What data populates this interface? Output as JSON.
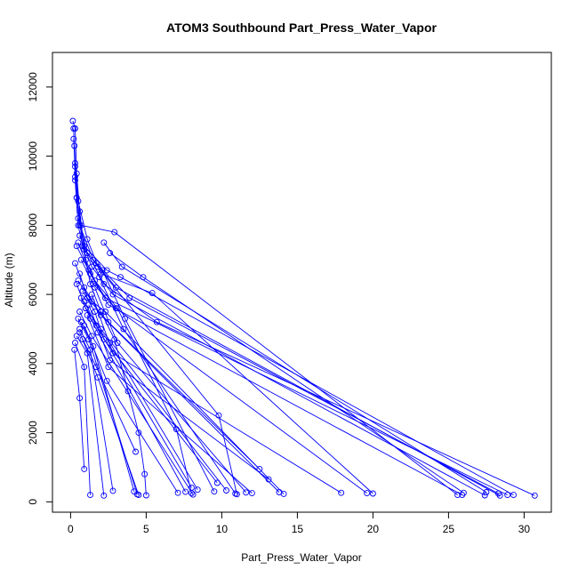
{
  "chart_data": {
    "type": "line",
    "title": "ATOM3 Southbound Part_Press_Water_Vapor",
    "xlabel": "Part_Press_Water_Vapor",
    "ylabel": "Altitude (m)",
    "xlim": [
      -1.2,
      31.8
    ],
    "ylim": [
      -300,
      13000
    ],
    "x_ticks": [
      0,
      5,
      10,
      15,
      20,
      25,
      30
    ],
    "y_ticks": [
      0,
      2000,
      4000,
      6000,
      8000,
      10000,
      12000
    ],
    "grid": false,
    "legend": "none",
    "series_color": "#0000ff",
    "profiles": [
      [
        [
          0.15,
          11020
        ],
        [
          0.3,
          10800
        ],
        [
          0.4,
          9500
        ],
        [
          0.6,
          8400
        ],
        [
          0.9,
          7300
        ],
        [
          1.3,
          6300
        ],
        [
          2.0,
          5500
        ],
        [
          2.9,
          4700
        ],
        [
          3.8,
          3200
        ],
        [
          4.5,
          2000
        ],
        [
          4.9,
          800
        ],
        [
          5.0,
          190
        ]
      ],
      [
        [
          0.2,
          10800
        ],
        [
          0.3,
          9300
        ],
        [
          0.5,
          8000
        ],
        [
          1.0,
          7000
        ],
        [
          1.6,
          6400
        ],
        [
          3.1,
          5600
        ],
        [
          7.0,
          2100
        ],
        [
          8.0,
          250
        ]
      ],
      [
        [
          0.25,
          10300
        ],
        [
          0.4,
          8800
        ],
        [
          0.8,
          7400
        ],
        [
          1.8,
          6800
        ],
        [
          9.8,
          2500
        ],
        [
          11.0,
          220
        ]
      ],
      [
        [
          0.3,
          9800
        ],
        [
          0.5,
          8700
        ],
        [
          1.1,
          7600
        ],
        [
          2.0,
          6600
        ],
        [
          5.4,
          6040
        ],
        [
          20.0,
          240
        ]
      ],
      [
        [
          0.2,
          10500
        ],
        [
          0.3,
          9700
        ],
        [
          0.7,
          8000
        ],
        [
          2.9,
          7800
        ],
        [
          25.6,
          200
        ]
      ],
      [
        [
          0.3,
          9400
        ],
        [
          0.6,
          8000
        ],
        [
          1.5,
          7000
        ],
        [
          3.0,
          6200
        ],
        [
          28.4,
          180
        ]
      ],
      [
        [
          0.4,
          8800
        ],
        [
          0.9,
          7400
        ],
        [
          2.4,
          6700
        ],
        [
          3.3,
          6500
        ],
        [
          29.3,
          200
        ]
      ],
      [
        [
          0.5,
          8200
        ],
        [
          1.1,
          7200
        ],
        [
          2.2,
          6300
        ],
        [
          5.7,
          5200
        ],
        [
          30.7,
          180
        ]
      ],
      [
        [
          0.6,
          7700
        ],
        [
          1.4,
          6800
        ],
        [
          2.8,
          6000
        ],
        [
          27.4,
          190
        ]
      ],
      [
        [
          0.4,
          7400
        ],
        [
          1.3,
          6600
        ],
        [
          2.5,
          5700
        ],
        [
          25.9,
          200
        ]
      ],
      [
        [
          0.5,
          7500
        ],
        [
          1.2,
          6700
        ],
        [
          2.3,
          5900
        ],
        [
          28.9,
          200
        ]
      ],
      [
        [
          0.7,
          7000
        ],
        [
          1.5,
          6300
        ],
        [
          3.0,
          5600
        ],
        [
          19.6,
          250
        ]
      ],
      [
        [
          0.3,
          6900
        ],
        [
          0.9,
          6200
        ],
        [
          2.0,
          5400
        ],
        [
          13.8,
          280
        ]
      ],
      [
        [
          0.6,
          6600
        ],
        [
          1.1,
          5900
        ],
        [
          2.5,
          5200
        ],
        [
          12.5,
          950
        ]
      ],
      [
        [
          0.5,
          6400
        ],
        [
          1.4,
          5800
        ],
        [
          2.3,
          5500
        ],
        [
          14.1,
          230
        ]
      ],
      [
        [
          0.4,
          6300
        ],
        [
          1.0,
          5600
        ],
        [
          2.0,
          5000
        ],
        [
          10.3,
          330
        ]
      ],
      [
        [
          0.8,
          6100
        ],
        [
          1.6,
          5500
        ],
        [
          2.2,
          4700
        ],
        [
          9.7,
          550
        ]
      ],
      [
        [
          0.7,
          5900
        ],
        [
          1.3,
          5300
        ],
        [
          2.6,
          4600
        ],
        [
          8.4,
          350
        ]
      ],
      [
        [
          0.9,
          5800
        ],
        [
          1.7,
          5100
        ],
        [
          8.0,
          410
        ]
      ],
      [
        [
          1.0,
          5600
        ],
        [
          1.8,
          4900
        ],
        [
          7.6,
          290
        ]
      ],
      [
        [
          0.6,
          5500
        ],
        [
          1.4,
          4800
        ],
        [
          8.1,
          210
        ]
      ],
      [
        [
          0.5,
          5300
        ],
        [
          1.2,
          4700
        ],
        [
          4.4,
          220
        ]
      ],
      [
        [
          0.7,
          5200
        ],
        [
          1.5,
          4500
        ],
        [
          4.2,
          300
        ]
      ],
      [
        [
          0.6,
          5000
        ],
        [
          1.3,
          4400
        ],
        [
          2.8,
          320
        ]
      ],
      [
        [
          0.4,
          4800
        ],
        [
          1.1,
          4300
        ],
        [
          2.2,
          180
        ]
      ],
      [
        [
          0.3,
          4600
        ],
        [
          0.9,
          3900
        ],
        [
          1.3,
          200
        ]
      ],
      [
        [
          0.25,
          4400
        ],
        [
          0.6,
          3000
        ],
        [
          0.9,
          950
        ]
      ],
      [
        [
          0.8,
          4700
        ],
        [
          1.7,
          3900
        ],
        [
          4.3,
          1450
        ]
      ],
      [
        [
          0.6,
          4900
        ],
        [
          1.8,
          3600
        ],
        [
          4.5,
          200
        ]
      ],
      [
        [
          0.9,
          5100
        ],
        [
          2.4,
          3500
        ],
        [
          7.1,
          260
        ]
      ],
      [
        [
          1.1,
          5400
        ],
        [
          2.5,
          3900
        ],
        [
          12.0,
          250
        ]
      ],
      [
        [
          1.2,
          5700
        ],
        [
          2.6,
          4100
        ],
        [
          13.1,
          650
        ]
      ],
      [
        [
          1.4,
          6000
        ],
        [
          2.8,
          4300
        ],
        [
          17.9,
          260
        ]
      ],
      [
        [
          1.6,
          6200
        ],
        [
          3.1,
          4600
        ],
        [
          11.6,
          270
        ]
      ],
      [
        [
          1.9,
          6500
        ],
        [
          3.5,
          5000
        ],
        [
          10.9,
          240
        ]
      ],
      [
        [
          2.1,
          6700
        ],
        [
          3.6,
          5300
        ],
        [
          9.5,
          300
        ]
      ],
      [
        [
          1.7,
          6900
        ],
        [
          3.9,
          5900
        ],
        [
          28.3,
          240
        ]
      ],
      [
        [
          2.6,
          7200
        ],
        [
          4.8,
          6500
        ],
        [
          26.0,
          260
        ]
      ],
      [
        [
          2.2,
          7500
        ],
        [
          3.4,
          6800
        ],
        [
          27.5,
          280
        ]
      ]
    ]
  }
}
